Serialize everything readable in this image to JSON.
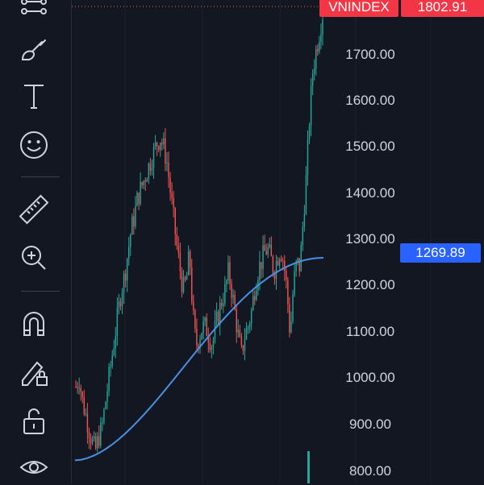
{
  "symbol_badge": {
    "text": "VNINDEX",
    "color": "#f23645"
  },
  "last_price_badge": {
    "text": "1802.91",
    "color": "#f23645"
  },
  "ma_price_badge": {
    "text": "1269.89",
    "color": "#2962ff"
  },
  "price_scale": {
    "labels": [
      "1700.00",
      "1600.00",
      "1500.00",
      "1400.00",
      "1300.00",
      "1200.00",
      "1100.00",
      "1000.00",
      "900.00",
      "800.00"
    ]
  },
  "colors": {
    "background": "#131722",
    "up": "#26a69a",
    "down": "#ef5350",
    "ma_line": "#4a90e2",
    "grid": "#1e222d"
  },
  "toolbar": {
    "tools": [
      {
        "name": "trend-line-tool",
        "icon": "trend-line-icon"
      },
      {
        "name": "brush-tool",
        "icon": "brush-icon"
      },
      {
        "name": "text-tool",
        "icon": "text-icon"
      },
      {
        "name": "emoji-tool",
        "icon": "smiley-icon"
      },
      {
        "name": "ruler-tool",
        "icon": "ruler-icon"
      },
      {
        "name": "zoom-tool",
        "icon": "zoom-in-icon"
      },
      {
        "name": "magnet-tool",
        "icon": "magnet-icon"
      },
      {
        "name": "lock-drawings-tool",
        "icon": "pencil-lock-icon"
      },
      {
        "name": "unlock-tool",
        "icon": "unlock-icon"
      },
      {
        "name": "visibility-tool",
        "icon": "eye-icon"
      }
    ]
  },
  "chart_data": {
    "type": "candlestick",
    "ylim": [
      780,
      1830
    ],
    "ma_y_range": [
      830,
      1270
    ],
    "closes": [
      990,
      1010,
      960,
      930,
      900,
      870,
      850,
      880,
      900,
      950,
      1000,
      1050,
      1100,
      1150,
      1200,
      1230,
      1280,
      1330,
      1360,
      1400,
      1420,
      1440,
      1460,
      1480,
      1500,
      1520,
      1530,
      1510,
      1480,
      1420,
      1360,
      1300,
      1250,
      1200,
      1220,
      1280,
      1150,
      1080,
      1100,
      1120,
      1120,
      1100,
      1080,
      1120,
      1150,
      1180,
      1200,
      1240,
      1200,
      1150,
      1100,
      1060,
      1100,
      1120,
      1150,
      1200,
      1240,
      1260,
      1280,
      1290,
      1270,
      1240,
      1270,
      1290,
      1260,
      1200,
      1100,
      1210,
      1260,
      1250,
      1350,
      1450,
      1580,
      1680,
      1720,
      1760,
      1800
    ]
  }
}
